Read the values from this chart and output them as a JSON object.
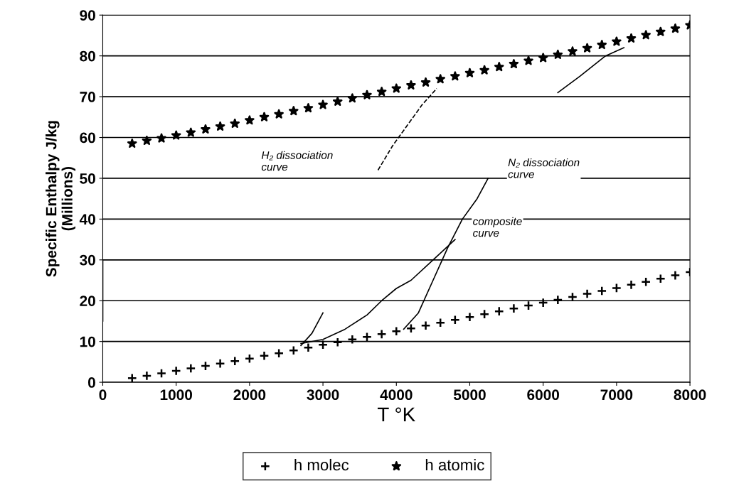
{
  "chart_data": {
    "type": "scatter",
    "xlabel": "T °K",
    "ylabel": "Specific Enthalpy J/kg\n(Millions)",
    "xlim": [
      0,
      8000
    ],
    "xticks": [
      0,
      1000,
      2000,
      3000,
      4000,
      5000,
      6000,
      7000,
      8000
    ],
    "ylim": [
      0,
      90
    ],
    "yticks": [
      0,
      10,
      20,
      30,
      40,
      50,
      60,
      70,
      80,
      90
    ],
    "grid": "y",
    "legend": "bottom",
    "series": [
      {
        "name": "h molec",
        "marker": "cross",
        "color": "#000000",
        "x": [
          400,
          600,
          800,
          1000,
          1200,
          1400,
          1600,
          1800,
          2000,
          2200,
          2400,
          2600,
          2800,
          3000,
          3200,
          3400,
          3600,
          3800,
          4000,
          4200,
          4400,
          4600,
          4800,
          5000,
          5200,
          5400,
          5600,
          5800,
          6000,
          6200,
          6400,
          6600,
          6800,
          7000,
          7200,
          7400,
          7600,
          7800,
          8000
        ],
        "values": [
          1.0,
          1.6,
          2.2,
          2.8,
          3.4,
          4.0,
          4.6,
          5.2,
          5.8,
          6.5,
          7.1,
          7.8,
          8.5,
          9.2,
          9.8,
          10.5,
          11.1,
          11.8,
          12.5,
          13.2,
          13.9,
          14.6,
          15.3,
          16.0,
          16.7,
          17.4,
          18.1,
          18.8,
          19.5,
          20.2,
          20.9,
          21.7,
          22.4,
          23.1,
          23.9,
          24.6,
          25.4,
          26.2,
          27.0
        ]
      },
      {
        "name": "h atomic",
        "marker": "star",
        "color": "#000000",
        "x": [
          400,
          600,
          800,
          1000,
          1200,
          1400,
          1600,
          1800,
          2000,
          2200,
          2400,
          2600,
          2800,
          3000,
          3200,
          3400,
          3600,
          3800,
          4000,
          4200,
          4400,
          4600,
          4800,
          5000,
          5200,
          5400,
          5600,
          5800,
          6000,
          6200,
          6400,
          6600,
          6800,
          7000,
          7200,
          7400,
          7600,
          7800,
          8000
        ],
        "values": [
          58.5,
          59.2,
          59.8,
          60.5,
          61.2,
          62.0,
          62.7,
          63.4,
          64.2,
          65.0,
          65.7,
          66.5,
          67.2,
          68.0,
          68.8,
          69.6,
          70.4,
          71.2,
          72.0,
          72.8,
          73.5,
          74.3,
          75.0,
          75.8,
          76.5,
          77.3,
          78.0,
          78.8,
          79.5,
          80.3,
          81.1,
          81.9,
          82.7,
          83.5,
          84.3,
          85.1,
          85.9,
          86.7,
          87.5
        ]
      },
      {
        "type": "line",
        "line_style": "dashed",
        "color": "#000000",
        "x": [
          3750,
          3950,
          4150,
          4350,
          4550
        ],
        "values": [
          52,
          58,
          63,
          68,
          72
        ]
      },
      {
        "type": "line",
        "line_style": "solid",
        "color": "#000000",
        "x": [
          6200,
          6500,
          6850,
          7100
        ],
        "values": [
          71,
          75,
          80,
          82
        ]
      },
      {
        "type": "line",
        "line_style": "solid",
        "color": "#000000",
        "x": [
          4100,
          4300,
          4500,
          4700,
          4900,
          5100,
          5250
        ],
        "values": [
          13,
          17,
          25,
          33,
          40,
          45,
          50
        ]
      },
      {
        "type": "line",
        "line_style": "solid",
        "color": "#000000",
        "x": [
          2700,
          2850,
          3000
        ],
        "values": [
          9,
          12,
          17
        ]
      },
      {
        "type": "line",
        "line_style": "solid",
        "color": "#000000",
        "x": [
          2700,
          3000,
          3300,
          3600,
          3800,
          4000,
          4200,
          4500,
          4800
        ],
        "values": [
          9.5,
          10.5,
          13,
          16.5,
          20,
          23,
          25,
          30,
          35
        ]
      },
      {
        "type": "line",
        "line_style": "solid",
        "color": "#000000",
        "x": [
          0,
          0
        ],
        "values": [
          15,
          30
        ]
      }
    ],
    "annotations": [
      "H₂ dissociation\ncurve",
      "N₂ dissociation\ncurve",
      "composite\ncurve"
    ]
  }
}
